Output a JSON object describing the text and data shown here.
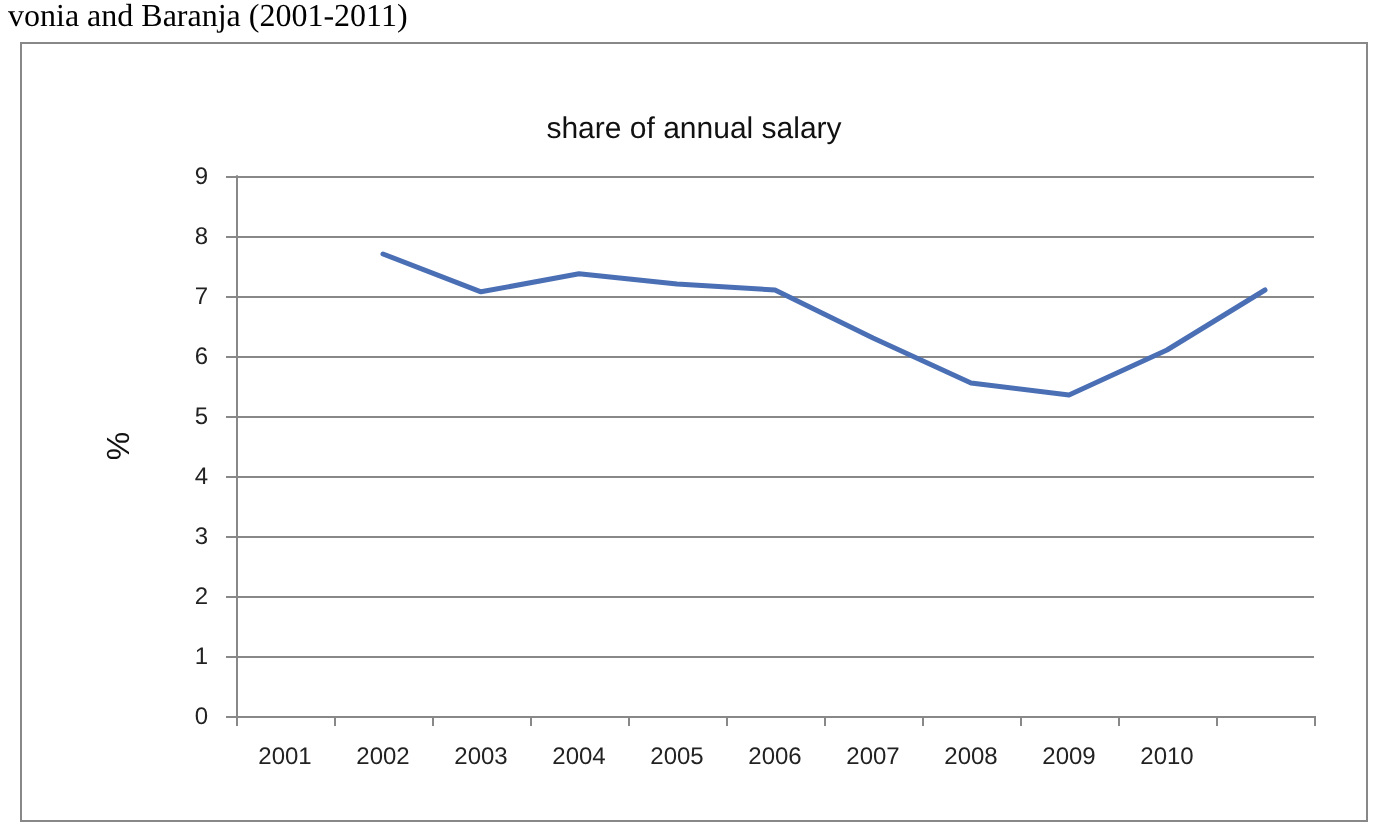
{
  "chart_data": {
    "type": "line",
    "title": "share of annual salary",
    "ylabel": "%",
    "annotations": [
      "vonia and Baranja (2001-2011)"
    ],
    "categories": [
      "2001",
      "2002",
      "2003",
      "2004",
      "2005",
      "2006",
      "2007",
      "2008",
      "2009",
      "2010",
      null
    ],
    "series": [
      {
        "color": "#4a6fb5",
        "values": [
          null,
          7.7,
          7.07,
          7.37,
          7.2,
          7.1,
          6.3,
          5.55,
          5.35,
          6.1,
          7.1
        ]
      }
    ],
    "ylim": [
      0,
      9
    ],
    "yticks": [
      0,
      1,
      2,
      3,
      4,
      5,
      6,
      7,
      8,
      9
    ],
    "grid": "y",
    "marker": "none",
    "line_style": "solid"
  }
}
